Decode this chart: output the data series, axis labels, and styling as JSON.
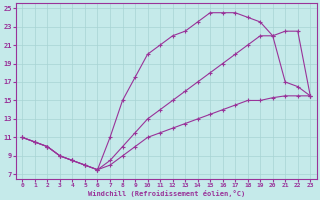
{
  "xlabel": "Windchill (Refroidissement éolien,°C)",
  "xlim": [
    -0.5,
    23.5
  ],
  "ylim": [
    6.5,
    25.5
  ],
  "xticks": [
    0,
    1,
    2,
    3,
    4,
    5,
    6,
    7,
    8,
    9,
    10,
    11,
    12,
    13,
    14,
    15,
    16,
    17,
    18,
    19,
    20,
    21,
    22,
    23
  ],
  "yticks": [
    7,
    9,
    11,
    13,
    15,
    17,
    19,
    21,
    23,
    25
  ],
  "bg_color": "#c5eaea",
  "line_color": "#993399",
  "grid_color": "#a8d4d4",
  "lines": [
    {
      "x": [
        0,
        1,
        2,
        3,
        4,
        5,
        6,
        7,
        8,
        9,
        10,
        11,
        12,
        13,
        14,
        15,
        16,
        17,
        18,
        19,
        20,
        21,
        22,
        23
      ],
      "y": [
        11,
        10.5,
        10,
        9,
        8.5,
        8,
        7.5,
        8,
        9,
        10,
        11,
        11.5,
        12,
        12.5,
        13,
        13.5,
        14,
        14.5,
        15,
        15,
        15.3,
        15.5,
        15.5,
        15.5
      ]
    },
    {
      "x": [
        0,
        1,
        2,
        3,
        4,
        5,
        6,
        7,
        8,
        9,
        10,
        11,
        12,
        13,
        14,
        15,
        16,
        17,
        18,
        19,
        20,
        21,
        22,
        23
      ],
      "y": [
        11,
        10.5,
        10,
        9,
        8.5,
        8,
        7.5,
        11,
        15,
        17.5,
        20,
        21,
        22,
        22.5,
        23.5,
        24.5,
        24.5,
        24.5,
        24,
        23.5,
        22,
        17,
        16.5,
        15.5
      ]
    },
    {
      "x": [
        0,
        1,
        2,
        3,
        4,
        5,
        6,
        7,
        8,
        9,
        10,
        11,
        12,
        13,
        14,
        15,
        16,
        17,
        18,
        19,
        20,
        21,
        22,
        23
      ],
      "y": [
        11,
        10.5,
        10,
        9,
        8.5,
        8,
        7.5,
        8.5,
        10,
        11.5,
        13,
        14,
        15,
        16,
        17,
        18,
        19,
        20,
        21,
        22,
        22,
        22.5,
        22.5,
        15.5
      ]
    }
  ]
}
